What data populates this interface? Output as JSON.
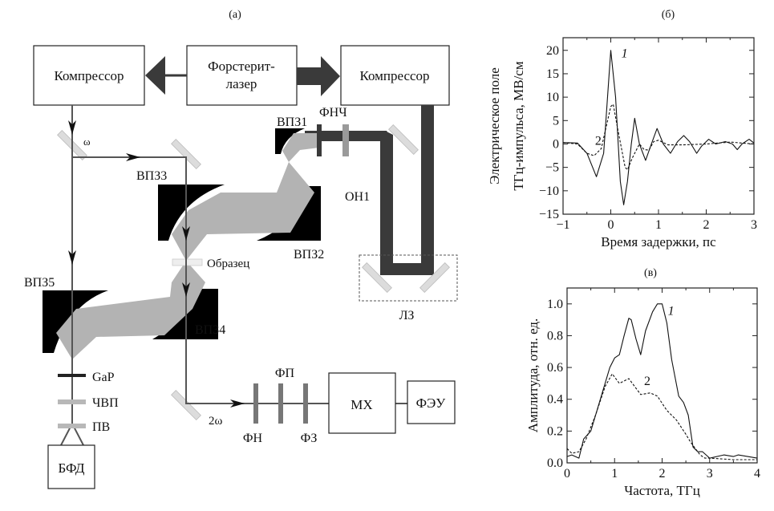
{
  "diagram": {
    "panel_label": "(a)",
    "boxes": {
      "compressor_left": "Компрессор",
      "laser_line1": "Форстерит-",
      "laser_line2": "лазер",
      "compressor_right": "Компрессор",
      "mx": "МХ",
      "feu": "ФЭУ",
      "bfd": "БФД"
    },
    "labels": {
      "omega": "ω",
      "two_omega": "2ω",
      "vpz1": "ВПЗ1",
      "fnch": "ФНЧ",
      "on1": "ОН1",
      "vpz2": "ВПЗ2",
      "vpz3": "ВПЗ3",
      "vpz4": "ВПЗ4",
      "vpz5": "ВПЗ5",
      "sample": "Образец",
      "lz": "ЛЗ",
      "gap": "GaP",
      "chvp": "ЧВП",
      "pv": "ПВ",
      "fn": "ФН",
      "fp": "ФП",
      "fz": "ФЗ"
    },
    "colors": {
      "dark_beam": "#3a3a3a",
      "thz_beam": "#b3b3b3",
      "probe_line": "#555555",
      "mirror": "#000000",
      "flat_mirror": "#dcdcdc"
    }
  },
  "chart_data": [
    {
      "panel_label": "(б)",
      "type": "line",
      "xlabel": "Время задержки, пс",
      "ylabel_line1": "Электрическое поле",
      "ylabel_line2": "ТГц-импульса, МВ/см",
      "xlim": [
        -1,
        3
      ],
      "ylim": [
        -15,
        22.7
      ],
      "xticks": [
        -1,
        0,
        1,
        2,
        3
      ],
      "xtick_labels": [
        "−1",
        "0",
        "1",
        "2",
        "3"
      ],
      "yticks": [
        -15,
        -10,
        -5,
        0,
        5,
        10,
        15,
        20
      ],
      "ytick_labels": [
        "−15",
        "−10",
        "−5",
        "0",
        "5",
        "10",
        "15",
        "20"
      ],
      "grid": false,
      "series": [
        {
          "name": "1",
          "style": "solid",
          "x": [
            -1,
            -0.7,
            -0.5,
            -0.3,
            -0.15,
            0,
            0.1,
            0.2,
            0.27,
            0.35,
            0.43,
            0.5,
            0.6,
            0.73,
            0.85,
            0.97,
            1.1,
            1.25,
            1.4,
            1.53,
            1.65,
            1.8,
            1.9,
            2.05,
            2.2,
            2.4,
            2.55,
            2.65,
            2.75,
            2.9,
            3
          ],
          "y": [
            0.3,
            0.2,
            -2,
            -7,
            -2,
            20,
            10,
            -8,
            -13,
            -8,
            0,
            5.5,
            0,
            -3.5,
            0,
            3.3,
            0,
            -2,
            0.5,
            1.8,
            0.5,
            -2,
            -0.5,
            1,
            0,
            0.5,
            0,
            -1.2,
            0,
            1,
            0.2
          ]
        },
        {
          "name": "2",
          "style": "dashed",
          "x": [
            -1,
            -0.7,
            -0.5,
            -0.35,
            -0.2,
            0,
            0.05,
            0.15,
            0.3,
            0.35,
            0.45,
            0.6,
            0.7,
            0.8,
            0.9,
            1,
            1.2,
            1.5,
            2,
            2.5,
            3
          ],
          "y": [
            0.3,
            0,
            -2,
            -2.5,
            -1,
            8,
            8.5,
            3,
            -5,
            -5.5,
            -3,
            0,
            -1.2,
            -1.3,
            0.5,
            0.8,
            -0.2,
            -0.2,
            0,
            0.4,
            0
          ]
        }
      ],
      "annotations": [
        {
          "text": "1",
          "x": 0.22,
          "y": 18.5,
          "italic": true
        },
        {
          "text": "2",
          "x": -0.33,
          "y": -0.2,
          "italic": false
        }
      ]
    },
    {
      "panel_label": "(в)",
      "type": "line",
      "xlabel": "Частота, ТГц",
      "ylabel_line1": "Амплитуда, отн. ед.",
      "xlim": [
        0,
        4
      ],
      "ylim": [
        0,
        1.1
      ],
      "xticks": [
        0,
        1,
        2,
        3,
        4
      ],
      "xtick_labels": [
        "0",
        "1",
        "2",
        "3",
        "4"
      ],
      "yticks": [
        0,
        0.2,
        0.4,
        0.6,
        0.8,
        1.0
      ],
      "ytick_labels": [
        "0.0",
        "0.2",
        "0.4",
        "0.6",
        "0.8",
        "1.0"
      ],
      "grid": false,
      "series": [
        {
          "name": "1",
          "style": "solid",
          "x": [
            0,
            0.1,
            0.25,
            0.35,
            0.5,
            0.7,
            0.9,
            1.0,
            1.1,
            1.2,
            1.3,
            1.35,
            1.45,
            1.55,
            1.65,
            1.8,
            1.9,
            2.0,
            2.1,
            2.2,
            2.35,
            2.45,
            2.55,
            2.65,
            2.75,
            2.85,
            3.0,
            3.3,
            3.5,
            3.6,
            4
          ],
          "y": [
            0.04,
            0.05,
            0.03,
            0.15,
            0.2,
            0.4,
            0.6,
            0.66,
            0.68,
            0.8,
            0.91,
            0.9,
            0.78,
            0.68,
            0.83,
            0.95,
            1.0,
            1.0,
            0.88,
            0.65,
            0.42,
            0.38,
            0.3,
            0.1,
            0.07,
            0.07,
            0.03,
            0.05,
            0.04,
            0.05,
            0.03
          ]
        },
        {
          "name": "2",
          "style": "dashed",
          "x": [
            0,
            0.1,
            0.25,
            0.4,
            0.6,
            0.8,
            0.95,
            1.1,
            1.3,
            1.45,
            1.55,
            1.75,
            1.9,
            2.1,
            2.3,
            2.5,
            2.6,
            2.8,
            2.9,
            3.0,
            3.5,
            4
          ],
          "y": [
            0.09,
            0.06,
            0.07,
            0.15,
            0.3,
            0.48,
            0.56,
            0.5,
            0.53,
            0.47,
            0.43,
            0.44,
            0.42,
            0.33,
            0.27,
            0.18,
            0.13,
            0.05,
            0.03,
            0.03,
            0.02,
            0.02
          ]
        }
      ],
      "annotations": [
        {
          "text": "1",
          "x": 2.12,
          "y": 0.93,
          "italic": true
        },
        {
          "text": "2",
          "x": 1.62,
          "y": 0.49,
          "italic": false
        }
      ]
    }
  ]
}
